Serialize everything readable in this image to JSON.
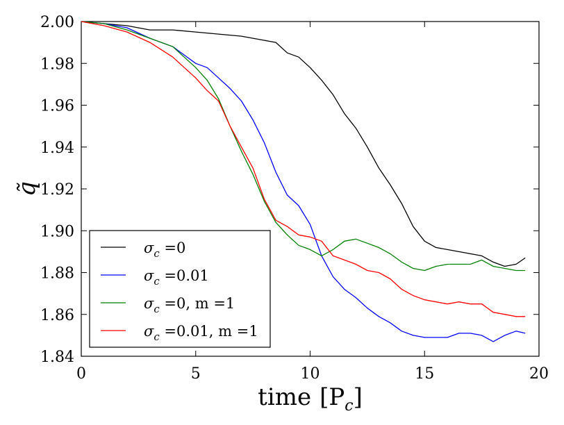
{
  "chart_data": {
    "type": "line",
    "title": "",
    "xlabel": "time [P_c]",
    "xlabel_text": "time",
    "xlabel_unit": "[P",
    "xlabel_sub": "c",
    "xlabel_close": "]",
    "ylabel": "q̃",
    "xlim": [
      0,
      20
    ],
    "ylim": [
      1.84,
      2.0
    ],
    "xticks": [
      0,
      5,
      10,
      15,
      20
    ],
    "xtick_labels": [
      "0",
      "5",
      "10",
      "15",
      "20"
    ],
    "yticks": [
      1.84,
      1.86,
      1.88,
      1.9,
      1.92,
      1.94,
      1.96,
      1.98,
      2.0
    ],
    "ytick_labels": [
      "1.84",
      "1.86",
      "1.88",
      "1.90",
      "1.92",
      "1.94",
      "1.96",
      "1.98",
      "2.00"
    ],
    "legend_position": "lower-left",
    "series": [
      {
        "name": "σc = 0",
        "label_main": "σ",
        "label_sub": "c",
        "label_rest": " =0",
        "color": "#000000",
        "x": [
          0,
          1,
          2,
          3,
          4,
          5,
          6,
          7,
          7.5,
          8,
          8.5,
          9,
          9.5,
          10,
          10.5,
          11,
          11.5,
          12,
          12.5,
          13,
          13.5,
          14,
          14.5,
          15,
          15.5,
          16,
          16.5,
          17,
          17.5,
          18,
          18.5,
          19,
          19.4
        ],
        "y": [
          2.0,
          1.999,
          1.998,
          1.996,
          1.996,
          1.995,
          1.994,
          1.993,
          1.992,
          1.991,
          1.99,
          1.985,
          1.983,
          1.978,
          1.972,
          1.965,
          1.956,
          1.949,
          1.94,
          1.93,
          1.922,
          1.913,
          1.902,
          1.895,
          1.892,
          1.891,
          1.89,
          1.889,
          1.888,
          1.885,
          1.883,
          1.884,
          1.887
        ]
      },
      {
        "name": "σc = 0.01",
        "label_main": "σ",
        "label_sub": "c",
        "label_rest": " =0.01",
        "color": "#0000ff",
        "x": [
          0,
          1,
          2,
          3,
          4,
          5,
          5.5,
          6,
          6.5,
          7,
          7.5,
          8,
          8.5,
          9,
          9.5,
          10,
          10.5,
          11,
          11.5,
          12,
          12.5,
          13,
          13.5,
          14,
          14.5,
          15,
          15.5,
          16,
          16.5,
          17,
          17.5,
          18,
          18.5,
          19,
          19.4
        ],
        "y": [
          2.0,
          1.999,
          1.997,
          1.992,
          1.988,
          1.98,
          1.978,
          1.973,
          1.968,
          1.962,
          1.953,
          1.942,
          1.928,
          1.917,
          1.912,
          1.903,
          1.888,
          1.878,
          1.872,
          1.868,
          1.863,
          1.859,
          1.856,
          1.852,
          1.85,
          1.849,
          1.849,
          1.849,
          1.851,
          1.851,
          1.85,
          1.847,
          1.85,
          1.852,
          1.851
        ]
      },
      {
        "name": "σc = 0, m = 1",
        "label_main": "σ",
        "label_sub": "c",
        "label_rest": " =0, m =1",
        "color": "#008000",
        "x": [
          0,
          1,
          2,
          3,
          4,
          5,
          5.5,
          6,
          6.5,
          7,
          7.5,
          8,
          8.5,
          9,
          9.5,
          10,
          10.5,
          11,
          11.5,
          12,
          12.5,
          13,
          13.5,
          14,
          14.5,
          15,
          15.5,
          16,
          16.5,
          17,
          17.5,
          18,
          18.5,
          19,
          19.4
        ],
        "y": [
          2.0,
          1.999,
          1.996,
          1.992,
          1.988,
          1.978,
          1.972,
          1.963,
          1.95,
          1.938,
          1.927,
          1.914,
          1.904,
          1.898,
          1.893,
          1.891,
          1.888,
          1.891,
          1.895,
          1.896,
          1.894,
          1.892,
          1.889,
          1.885,
          1.882,
          1.881,
          1.883,
          1.884,
          1.884,
          1.884,
          1.886,
          1.883,
          1.882,
          1.881,
          1.881
        ]
      },
      {
        "name": "σc = 0.01, m = 1",
        "label_main": "σ",
        "label_sub": "c",
        "label_rest": " =0.01, m =1",
        "color": "#ff0000",
        "x": [
          0,
          1,
          2,
          3,
          4,
          5,
          5.5,
          6,
          6.5,
          7,
          7.5,
          8,
          8.5,
          9,
          9.5,
          10,
          10.5,
          11,
          11.5,
          12,
          12.5,
          13,
          13.5,
          14,
          14.5,
          15,
          15.5,
          16,
          16.5,
          17,
          17.5,
          18,
          18.5,
          19,
          19.4
        ],
        "y": [
          2.0,
          1.998,
          1.995,
          1.99,
          1.983,
          1.973,
          1.967,
          1.962,
          1.95,
          1.94,
          1.93,
          1.915,
          1.905,
          1.902,
          1.898,
          1.897,
          1.895,
          1.888,
          1.886,
          1.884,
          1.881,
          1.88,
          1.877,
          1.872,
          1.869,
          1.867,
          1.866,
          1.865,
          1.866,
          1.865,
          1.865,
          1.861,
          1.86,
          1.859,
          1.859
        ]
      }
    ]
  }
}
